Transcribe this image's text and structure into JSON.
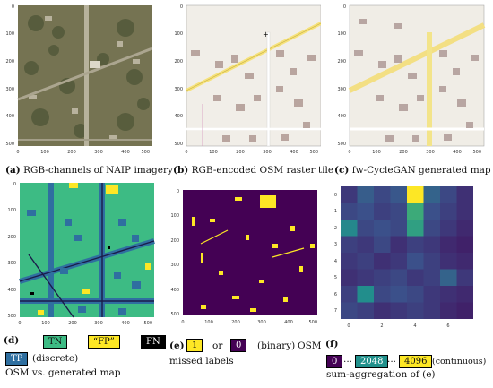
{
  "panels": {
    "a": {
      "letter": "(a)",
      "caption": "RGB-channels of NAIP imagery"
    },
    "b": {
      "letter": "(b)",
      "caption": "RGB-encoded OSM raster tile"
    },
    "c": {
      "letter": "(c)",
      "caption": "fw-CycleGAN generated map"
    },
    "d": {
      "letter": "(d)",
      "legend": [
        {
          "label": "TN",
          "color": "#3dbb84",
          "text_color": "#111111"
        },
        {
          "label": "“FP”",
          "color": "#fde725",
          "text_color": "#111111"
        },
        {
          "label": "FN",
          "color": "#000000",
          "text_color": "#ffffff"
        },
        {
          "label": "TP",
          "color": "#2f6fa0",
          "text_color": "#ffffff"
        }
      ],
      "text_after_tp": "(discrete)",
      "caption": "OSM vs. generated map"
    },
    "e": {
      "letter": "(e)",
      "legend": [
        {
          "label": "1",
          "color": "#fde725",
          "text_color": "#111111"
        },
        {
          "label": "0",
          "color": "#440154",
          "text_color": "#ffffff"
        }
      ],
      "or": "or",
      "binary": "(binary)",
      "osm": "OSM",
      "caption": "missed labels"
    },
    "f": {
      "letter": "(f)",
      "legend": [
        {
          "label": "0",
          "color": "#440154",
          "text_color": "#ffffff"
        },
        {
          "label": "2048",
          "color": "#21918c",
          "text_color": "#ffffff"
        },
        {
          "label": "4096",
          "color": "#fde725",
          "text_color": "#111111"
        }
      ],
      "dots": "...",
      "continuous": "(continuous)",
      "caption": "sum-aggregation of (e)"
    }
  },
  "tick_labels": {
    "image_y": [
      "0",
      "100",
      "200",
      "300",
      "400",
      "500"
    ],
    "image_x": [
      "0",
      "100",
      "200",
      "300",
      "400",
      "500"
    ],
    "heat_y": [
      "0",
      "1",
      "2",
      "3",
      "4",
      "5",
      "6",
      "7"
    ],
    "heat_x": [
      "0",
      "2",
      "4",
      "6"
    ]
  },
  "chart_data": {
    "type": "heatmap",
    "rows": 8,
    "cols": 8,
    "colormap": "viridis",
    "vmin": 0,
    "vmax": 4096,
    "values": [
      [
        700,
        1200,
        900,
        1100,
        4096,
        1300,
        900,
        600
      ],
      [
        900,
        1000,
        800,
        900,
        2500,
        1000,
        800,
        600
      ],
      [
        1900,
        900,
        1000,
        900,
        2300,
        900,
        700,
        500
      ],
      [
        800,
        700,
        900,
        600,
        800,
        700,
        500,
        400
      ],
      [
        700,
        800,
        600,
        700,
        1000,
        800,
        600,
        500
      ],
      [
        600,
        700,
        800,
        900,
        700,
        800,
        1300,
        700
      ],
      [
        800,
        2000,
        900,
        1000,
        900,
        700,
        600,
        500
      ],
      [
        900,
        800,
        600,
        700,
        800,
        700,
        500,
        400
      ]
    ]
  }
}
